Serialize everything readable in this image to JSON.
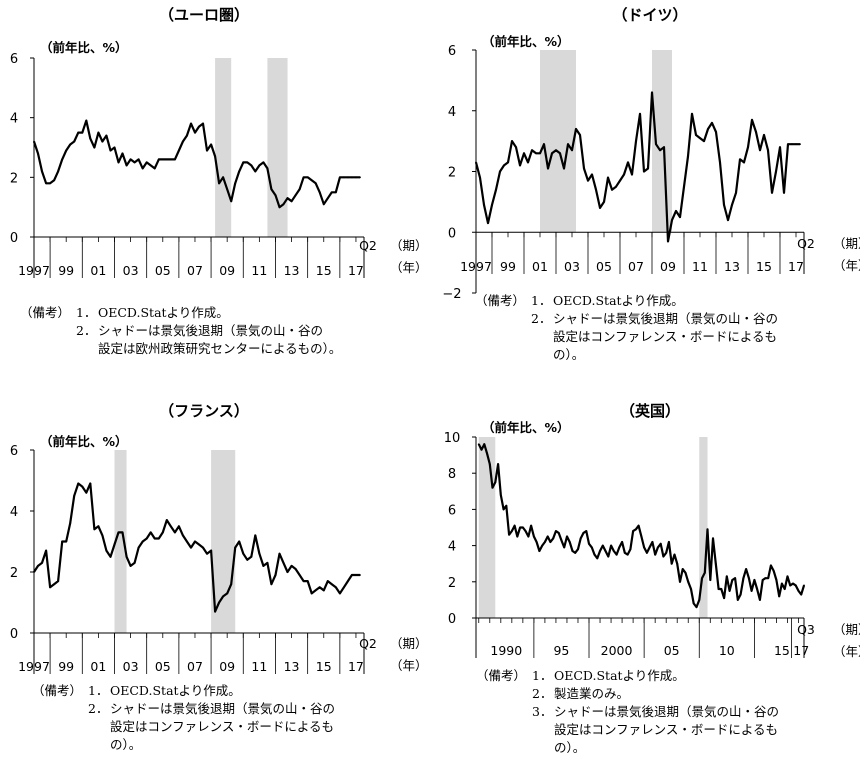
{
  "charts": [
    {
      "title": "（ユーロ圏）",
      "unit": "（前年比、%）",
      "q_label": "Q2",
      "period_label": "（期）",
      "year_label": "（年）",
      "notes": {
        "label": "（備考）",
        "items": [
          {
            "num": "1．",
            "lines": [
              "OECD.Statより作成。"
            ]
          },
          {
            "num": "2．",
            "lines": [
              "シャドーは景気後退期（景気の山・谷の",
              "設定は欧州政策研究センターによるもの）。"
            ]
          }
        ]
      }
    },
    {
      "title": "（ドイツ）",
      "unit": "（前年比、%）",
      "q_label": "Q2",
      "period_label": "（期）",
      "year_label": "（年）",
      "notes": {
        "label": "（備考）",
        "items": [
          {
            "num": "1．",
            "lines": [
              "OECD.Statより作成。"
            ]
          },
          {
            "num": "2．",
            "lines": [
              "シャドーは景気後退期（景気の山・谷の",
              "設定はコンファレンス・ボードによるも",
              "の）。"
            ]
          }
        ]
      }
    },
    {
      "title": "（フランス）",
      "unit": "（前年比、%）",
      "q_label": "Q2",
      "period_label": "（期）",
      "year_label": "（年）",
      "notes": {
        "label": "（備考）",
        "items": [
          {
            "num": "1．",
            "lines": [
              "OECD.Statより作成。"
            ]
          },
          {
            "num": "2．",
            "lines": [
              "シャドーは景気後退期（景気の山・谷の",
              "設定はコンファレンス・ボードによるも",
              "の）。"
            ]
          }
        ]
      }
    },
    {
      "title": "（英国）",
      "unit": "（前年比、%）",
      "q_label": "Q3",
      "period_label": "（期）",
      "year_label": "（年）",
      "notes": {
        "label": "（備考）",
        "items": [
          {
            "num": "1．",
            "lines": [
              "OECD.Statより作成。"
            ]
          },
          {
            "num": "2．",
            "lines": [
              "製造業のみ。"
            ]
          },
          {
            "num": "3．",
            "lines": [
              "シャドーは景気後退期（景気の山・谷の",
              "設定はコンファレンス・ボードによるも",
              "の）。"
            ]
          }
        ]
      }
    }
  ],
  "chart_data": [
    {
      "type": "line",
      "title": "（ユーロ圏）",
      "ylabel": "（前年比、%）",
      "ylim": [
        0,
        6
      ],
      "yticks": [
        0,
        2,
        4,
        6
      ],
      "xlim": [
        1997.0,
        2017.5
      ],
      "xtick_labels": [
        "1997",
        "99",
        "01",
        "03",
        "05",
        "07",
        "09",
        "11",
        "13",
        "15",
        "17"
      ],
      "xtick_label_years": [
        1997,
        1999,
        2001,
        2003,
        2005,
        2007,
        2009,
        2011,
        2013,
        2015,
        2017
      ],
      "recessions": [
        [
          2008.25,
          2009.25
        ],
        [
          2011.5,
          2012.75
        ]
      ],
      "series": [
        {
          "x": [
            1997.0,
            1997.25,
            1997.5,
            1997.75,
            1998.0,
            1998.25,
            1998.5,
            1998.75,
            1999.0,
            1999.25,
            1999.5,
            1999.75,
            2000.0,
            2000.25,
            2000.5,
            2000.75,
            2001.0,
            2001.25,
            2001.5,
            2001.75,
            2002.0,
            2002.25,
            2002.5,
            2002.75,
            2003.0,
            2003.25,
            2003.5,
            2003.75,
            2004.0,
            2004.25,
            2004.5,
            2004.75,
            2005.0,
            2005.25,
            2005.5,
            2005.75,
            2006.0,
            2006.25,
            2006.5,
            2006.75,
            2007.0,
            2007.25,
            2007.5,
            2007.75,
            2008.0,
            2008.25,
            2008.5,
            2008.75,
            2009.0,
            2009.25,
            2009.5,
            2009.75,
            2010.0,
            2010.25,
            2010.5,
            2010.75,
            2011.0,
            2011.25,
            2011.5,
            2011.75,
            2012.0,
            2012.25,
            2012.5,
            2012.75,
            2013.0,
            2013.25,
            2013.5,
            2013.75,
            2014.0,
            2014.25,
            2014.5,
            2014.75,
            2015.0,
            2015.25,
            2015.5,
            2015.75,
            2016.0,
            2016.25,
            2016.5,
            2016.75,
            2017.0,
            2017.25
          ],
          "y": [
            3.2,
            2.8,
            2.2,
            1.8,
            1.8,
            1.9,
            2.2,
            2.6,
            2.9,
            3.1,
            3.2,
            3.5,
            3.5,
            3.9,
            3.3,
            3.0,
            3.5,
            3.2,
            3.4,
            2.9,
            3.0,
            2.5,
            2.8,
            2.4,
            2.6,
            2.5,
            2.6,
            2.3,
            2.5,
            2.4,
            2.3,
            2.6,
            2.6,
            2.6,
            2.6,
            2.6,
            2.9,
            3.2,
            3.4,
            3.8,
            3.5,
            3.7,
            3.8,
            2.9,
            3.1,
            2.7,
            1.8,
            2.0,
            1.6,
            1.2,
            1.8,
            2.2,
            2.5,
            2.5,
            2.4,
            2.2,
            2.4,
            2.5,
            2.3,
            1.6,
            1.4,
            1.0,
            1.1,
            1.3,
            1.2,
            1.4,
            1.6,
            2.0,
            2.0,
            1.9,
            1.8,
            1.5,
            1.1,
            1.3,
            1.5,
            1.5,
            2.0,
            2.0,
            2.0,
            2.0,
            2.0,
            2.0
          ]
        }
      ]
    },
    {
      "type": "line",
      "title": "（ドイツ）",
      "ylabel": "（前年比、%）",
      "ylim": [
        -2,
        6
      ],
      "yticks": [
        -2,
        0,
        2,
        4,
        6
      ],
      "xlim": [
        1997.0,
        2017.5
      ],
      "xtick_labels": [
        "1997",
        "99",
        "01",
        "03",
        "05",
        "07",
        "09",
        "11",
        "13",
        "15",
        "17"
      ],
      "xtick_label_years": [
        1997,
        1999,
        2001,
        2003,
        2005,
        2007,
        2009,
        2011,
        2013,
        2015,
        2017
      ],
      "recessions": [
        [
          2001.0,
          2003.25
        ],
        [
          2008.0,
          2009.25
        ]
      ],
      "series": [
        {
          "x": [
            1997.0,
            1997.25,
            1997.5,
            1997.75,
            1998.0,
            1998.25,
            1998.5,
            1998.75,
            1999.0,
            1999.25,
            1999.5,
            1999.75,
            2000.0,
            2000.25,
            2000.5,
            2000.75,
            2001.0,
            2001.25,
            2001.5,
            2001.75,
            2002.0,
            2002.25,
            2002.5,
            2002.75,
            2003.0,
            2003.25,
            2003.5,
            2003.75,
            2004.0,
            2004.25,
            2004.5,
            2004.75,
            2005.0,
            2005.25,
            2005.5,
            2005.75,
            2006.0,
            2006.25,
            2006.5,
            2006.75,
            2007.0,
            2007.25,
            2007.5,
            2007.75,
            2008.0,
            2008.25,
            2008.5,
            2008.75,
            2009.0,
            2009.25,
            2009.5,
            2009.75,
            2010.0,
            2010.25,
            2010.5,
            2010.75,
            2011.0,
            2011.25,
            2011.5,
            2011.75,
            2012.0,
            2012.25,
            2012.5,
            2012.75,
            2013.0,
            2013.25,
            2013.5,
            2013.75,
            2014.0,
            2014.25,
            2014.5,
            2014.75,
            2015.0,
            2015.25,
            2015.5,
            2015.75,
            2016.0,
            2016.25,
            2016.5,
            2016.75,
            2017.0,
            2017.25
          ],
          "y": [
            2.3,
            1.8,
            0.9,
            0.3,
            0.9,
            1.4,
            2.0,
            2.2,
            2.3,
            3.0,
            2.8,
            2.2,
            2.6,
            2.3,
            2.7,
            2.6,
            2.6,
            2.9,
            2.1,
            2.6,
            2.7,
            2.6,
            2.1,
            2.9,
            2.7,
            3.4,
            3.2,
            2.1,
            1.7,
            1.9,
            1.4,
            0.8,
            1.0,
            1.8,
            1.4,
            1.5,
            1.7,
            1.9,
            2.3,
            1.9,
            3.0,
            3.9,
            2.0,
            2.1,
            4.6,
            2.9,
            2.7,
            2.8,
            -0.3,
            0.4,
            0.7,
            0.5,
            1.5,
            2.5,
            3.9,
            3.2,
            3.1,
            3.0,
            3.4,
            3.6,
            3.3,
            2.3,
            0.9,
            0.4,
            0.9,
            1.3,
            2.4,
            2.3,
            2.8,
            3.7,
            3.3,
            2.7,
            3.2,
            2.7,
            1.3,
            2.0,
            2.8,
            1.3,
            2.9,
            2.9,
            2.9,
            2.9
          ]
        }
      ]
    },
    {
      "type": "line",
      "title": "（フランス）",
      "ylabel": "（前年比、%）",
      "ylim": [
        0,
        6
      ],
      "yticks": [
        0,
        2,
        4,
        6
      ],
      "xlim": [
        1997.0,
        2017.5
      ],
      "xtick_labels": [
        "1997",
        "99",
        "01",
        "03",
        "05",
        "07",
        "09",
        "11",
        "13",
        "15",
        "17"
      ],
      "xtick_label_years": [
        1997,
        1999,
        2001,
        2003,
        2005,
        2007,
        2009,
        2011,
        2013,
        2015,
        2017
      ],
      "recessions": [
        [
          2002.0,
          2002.75
        ],
        [
          2008.0,
          2009.5
        ]
      ],
      "series": [
        {
          "x": [
            1997.0,
            1997.25,
            1997.5,
            1997.75,
            1998.0,
            1998.25,
            1998.5,
            1998.75,
            1999.0,
            1999.25,
            1999.5,
            1999.75,
            2000.0,
            2000.25,
            2000.5,
            2000.75,
            2001.0,
            2001.25,
            2001.5,
            2001.75,
            2002.0,
            2002.25,
            2002.5,
            2002.75,
            2003.0,
            2003.25,
            2003.5,
            2003.75,
            2004.0,
            2004.25,
            2004.5,
            2004.75,
            2005.0,
            2005.25,
            2005.5,
            2005.75,
            2006.0,
            2006.25,
            2006.5,
            2006.75,
            2007.0,
            2007.25,
            2007.5,
            2007.75,
            2008.0,
            2008.25,
            2008.5,
            2008.75,
            2009.0,
            2009.25,
            2009.5,
            2009.75,
            2010.0,
            2010.25,
            2010.5,
            2010.75,
            2011.0,
            2011.25,
            2011.5,
            2011.75,
            2012.0,
            2012.25,
            2012.5,
            2012.75,
            2013.0,
            2013.25,
            2013.5,
            2013.75,
            2014.0,
            2014.25,
            2014.5,
            2014.75,
            2015.0,
            2015.25,
            2015.5,
            2015.75,
            2016.0,
            2016.25,
            2016.5,
            2016.75,
            2017.0,
            2017.25
          ],
          "y": [
            2.0,
            2.2,
            2.3,
            2.7,
            1.5,
            1.6,
            1.7,
            3.0,
            3.0,
            3.6,
            4.5,
            4.9,
            4.8,
            4.6,
            4.9,
            3.4,
            3.5,
            3.2,
            2.7,
            2.5,
            2.9,
            3.3,
            3.3,
            2.5,
            2.2,
            2.3,
            2.8,
            3.0,
            3.1,
            3.3,
            3.1,
            3.1,
            3.3,
            3.7,
            3.5,
            3.3,
            3.5,
            3.2,
            3.0,
            2.8,
            3.0,
            2.9,
            2.8,
            2.6,
            2.7,
            0.7,
            1.0,
            1.2,
            1.3,
            1.6,
            2.8,
            3.0,
            2.6,
            2.4,
            2.5,
            3.2,
            2.6,
            2.2,
            2.3,
            1.6,
            1.9,
            2.6,
            2.3,
            2.0,
            2.2,
            2.1,
            1.9,
            1.7,
            1.7,
            1.3,
            1.4,
            1.5,
            1.4,
            1.7,
            1.6,
            1.5,
            1.3,
            1.5,
            1.7,
            1.9,
            1.9,
            1.9
          ]
        }
      ]
    },
    {
      "type": "line",
      "title": "（英国）",
      "ylabel": "（前年比、%）",
      "ylim": [
        0,
        10
      ],
      "yticks": [
        0,
        2,
        4,
        6,
        8,
        10
      ],
      "xlim": [
        1987.75,
        2017.5
      ],
      "xtick_labels": [
        "1990",
        "95",
        "2000",
        "05",
        "10",
        "15",
        "17"
      ],
      "xtick_label_years": [
        1990.5,
        1995.5,
        2000.5,
        2005.5,
        2010.5,
        2015.5,
        2017.25
      ],
      "recessions": [
        [
          1988.0,
          1989.5
        ],
        [
          2008.0,
          2008.75
        ]
      ],
      "series": [
        {
          "x": [
            1988.0,
            1988.25,
            1988.5,
            1988.75,
            1989.0,
            1989.25,
            1989.5,
            1989.75,
            1990.0,
            1990.25,
            1990.5,
            1990.75,
            1991.0,
            1991.25,
            1991.5,
            1991.75,
            1992.0,
            1992.25,
            1992.5,
            1992.75,
            1993.0,
            1993.25,
            1993.5,
            1993.75,
            1994.0,
            1994.25,
            1994.5,
            1994.75,
            1995.0,
            1995.25,
            1995.5,
            1995.75,
            1996.0,
            1996.25,
            1996.5,
            1996.75,
            1997.0,
            1997.25,
            1997.5,
            1997.75,
            1998.0,
            1998.25,
            1998.5,
            1998.75,
            1999.0,
            1999.25,
            1999.5,
            1999.75,
            2000.0,
            2000.25,
            2000.5,
            2000.75,
            2001.0,
            2001.25,
            2001.5,
            2001.75,
            2002.0,
            2002.25,
            2002.5,
            2002.75,
            2003.0,
            2003.25,
            2003.5,
            2003.75,
            2004.0,
            2004.25,
            2004.5,
            2004.75,
            2005.0,
            2005.25,
            2005.5,
            2005.75,
            2006.0,
            2006.25,
            2006.5,
            2006.75,
            2007.0,
            2007.25,
            2007.5,
            2007.75,
            2008.0,
            2008.25,
            2008.5,
            2008.75,
            2009.0,
            2009.25,
            2009.5,
            2009.75,
            2010.0,
            2010.25,
            2010.5,
            2010.75,
            2011.0,
            2011.25,
            2011.5,
            2011.75,
            2012.0,
            2012.25,
            2012.5,
            2012.75,
            2013.0,
            2013.25,
            2013.5,
            2013.75,
            2014.0,
            2014.25,
            2014.5,
            2014.75,
            2015.0,
            2015.25,
            2015.5,
            2015.75,
            2016.0,
            2016.25,
            2016.5,
            2016.75,
            2017.0,
            2017.25,
            2017.5
          ],
          "y": [
            9.6,
            9.3,
            9.6,
            9.1,
            8.5,
            7.2,
            7.5,
            8.5,
            6.8,
            6.0,
            6.2,
            4.6,
            4.8,
            5.1,
            4.5,
            5.0,
            5.0,
            4.8,
            4.5,
            5.1,
            4.5,
            4.2,
            3.7,
            4.0,
            4.2,
            4.5,
            4.2,
            4.4,
            4.8,
            4.7,
            4.3,
            3.9,
            4.5,
            4.2,
            3.7,
            3.6,
            3.8,
            4.4,
            4.7,
            4.8,
            4.1,
            3.9,
            3.5,
            3.3,
            3.7,
            4.0,
            3.7,
            3.4,
            4.0,
            3.7,
            3.5,
            3.9,
            4.2,
            3.6,
            3.5,
            3.8,
            4.8,
            4.9,
            5.1,
            4.5,
            3.9,
            3.6,
            3.9,
            4.2,
            3.5,
            3.9,
            4.1,
            3.4,
            3.6,
            4.2,
            3.0,
            3.5,
            3.0,
            2.0,
            2.7,
            2.5,
            2.0,
            1.6,
            0.8,
            0.6,
            1.0,
            2.2,
            2.5,
            4.9,
            2.1,
            4.4,
            3.0,
            1.6,
            1.6,
            1.1,
            2.3,
            1.5,
            2.1,
            2.2,
            1.0,
            1.3,
            2.2,
            2.7,
            2.2,
            1.5,
            2.1,
            1.6,
            1.0,
            2.1,
            2.2,
            2.2,
            2.9,
            2.6,
            2.1,
            1.2,
            1.9,
            1.6,
            2.3,
            1.8,
            1.9,
            1.8,
            1.5,
            1.3,
            1.8
          ]
        }
      ]
    }
  ]
}
